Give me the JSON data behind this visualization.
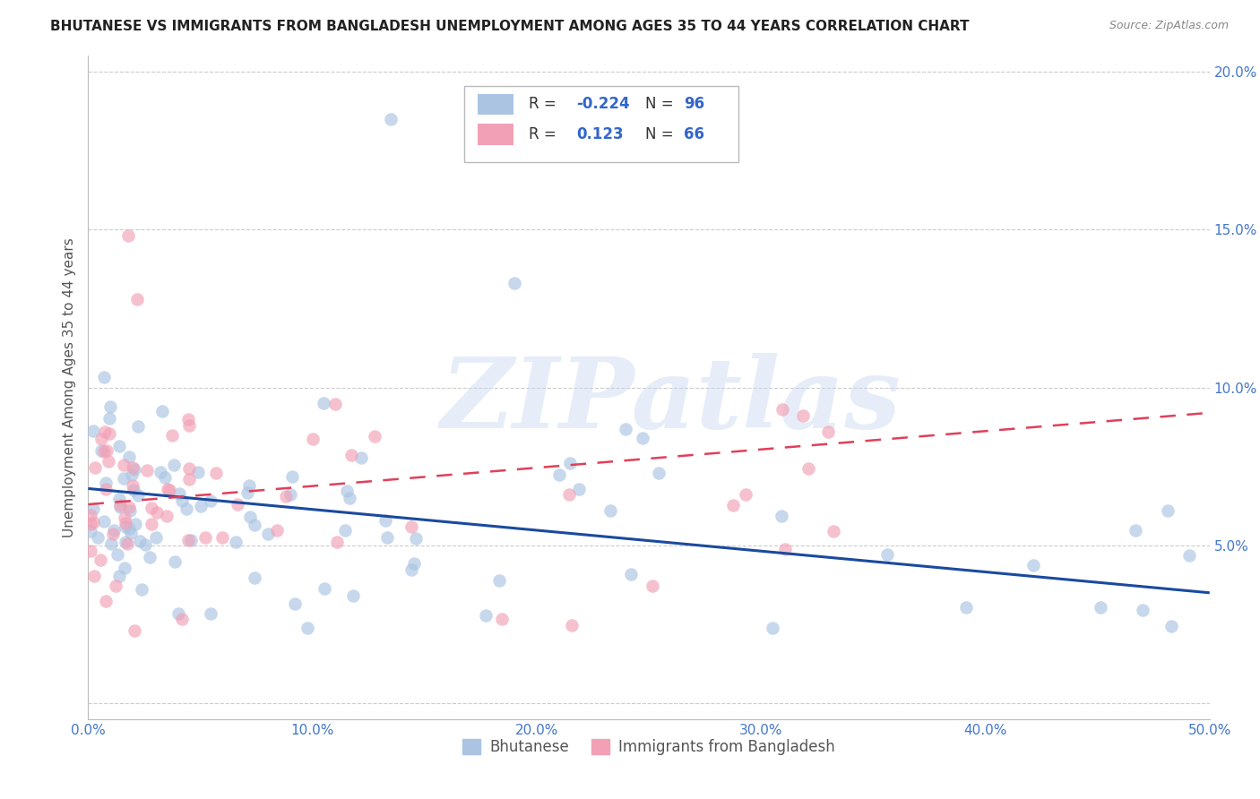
{
  "title": "BHUTANESE VS IMMIGRANTS FROM BANGLADESH UNEMPLOYMENT AMONG AGES 35 TO 44 YEARS CORRELATION CHART",
  "source": "Source: ZipAtlas.com",
  "ylabel": "Unemployment Among Ages 35 to 44 years",
  "xlim": [
    0,
    0.5
  ],
  "ylim": [
    -0.005,
    0.205
  ],
  "xticks": [
    0.0,
    0.1,
    0.2,
    0.3,
    0.4,
    0.5
  ],
  "xticklabels": [
    "0.0%",
    "10.0%",
    "20.0%",
    "30.0%",
    "40.0%",
    "50.0%"
  ],
  "yticks": [
    0.0,
    0.05,
    0.1,
    0.15,
    0.2
  ],
  "yticklabels": [
    "",
    "5.0%",
    "10.0%",
    "15.0%",
    "20.0%"
  ],
  "bhutanese_color": "#aac4e2",
  "bangladesh_color": "#f2a0b5",
  "trend_blue_color": "#1a4a9e",
  "trend_pink_color": "#e0405a",
  "watermark": "ZIPatlas",
  "watermark_color": "#c8d8f0",
  "trend_blue_x0": 0.0,
  "trend_blue_y0": 0.068,
  "trend_blue_x1": 0.5,
  "trend_blue_y1": 0.035,
  "trend_pink_x0": 0.0,
  "trend_pink_y0": 0.063,
  "trend_pink_x1": 0.5,
  "trend_pink_y1": 0.092
}
